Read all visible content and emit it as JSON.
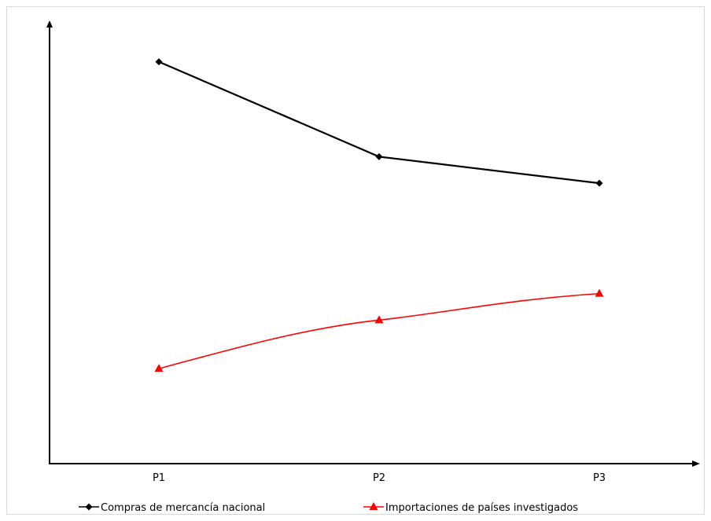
{
  "chart_data": {
    "type": "line",
    "title": "",
    "xlabel": "",
    "ylabel": "",
    "categories": [
      "P1",
      "P2",
      "P3"
    ],
    "y_ticks_shown": false,
    "ylim": [
      0,
      100
    ],
    "grid": false,
    "legend_position": "bottom",
    "series": [
      {
        "name": "Compras de mercancía nacional",
        "values": [
          91,
          69.5,
          63.5
        ],
        "color": "#000000",
        "marker": "diamond"
      },
      {
        "name": "Importaciones de países investigados",
        "values": [
          21.5,
          32.5,
          38.5
        ],
        "color": "#ff0000",
        "marker": "triangle"
      }
    ]
  }
}
